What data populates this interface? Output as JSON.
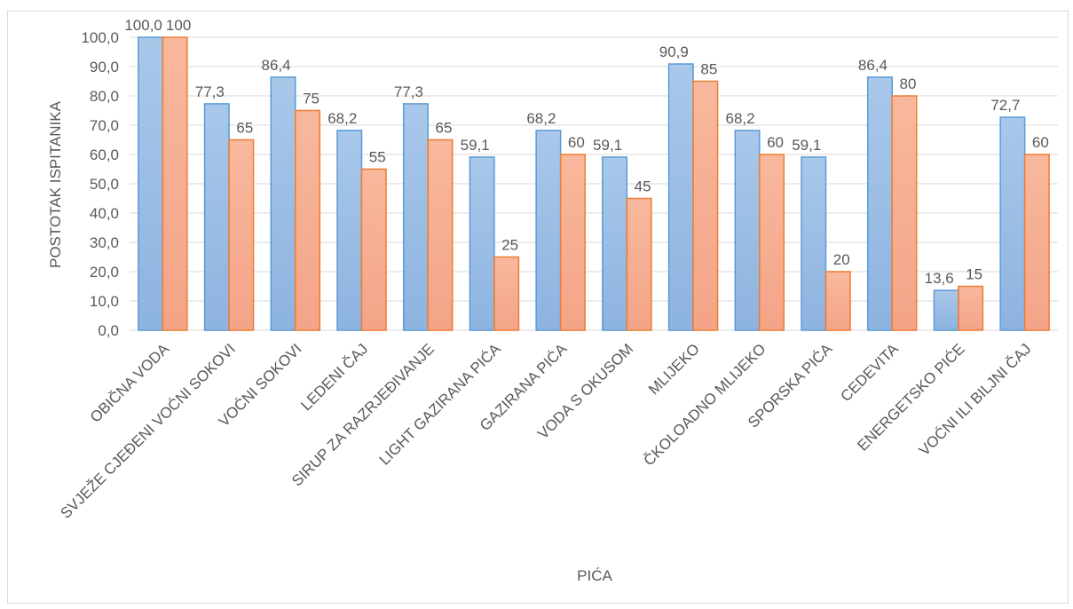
{
  "chart_data": {
    "type": "bar",
    "title": "",
    "xlabel": "PIĆA",
    "ylabel": "POSTOTAK ISPITANIKA",
    "ylim": [
      0,
      100
    ],
    "yticks": [
      "0,0",
      "10,0",
      "20,0",
      "30,0",
      "40,0",
      "50,0",
      "60,0",
      "70,0",
      "80,0",
      "90,0",
      "100,0"
    ],
    "grid": true,
    "legend": "none",
    "categories": [
      "OBIČNA VODA",
      "SVJEŽE CJEĐENI VOĆNI SOKOVI",
      "VOĆNI SOKOVI",
      "LEDENI ČAJ",
      "SIRUP ZA RAZRJEĐIVANJE",
      "LIGHT GAZIRANA PIĆA",
      "GAZIRANA PIĆA",
      "VODA S OKUSOM",
      "MLIJEKO",
      "ČKOLOADNO MLIJEKO",
      "SPORSKA PIĆA",
      "CEDEVITA",
      "ENERGETSKO PIĆE",
      "VOĆNI ILI BILJNI ČAJ"
    ],
    "series": [
      {
        "values": [
          100,
          77.3,
          86.4,
          68.2,
          77.3,
          59.1,
          68.2,
          59.1,
          90.9,
          68.2,
          59.1,
          86.4,
          13.6,
          72.7
        ],
        "labels": [
          "100,0",
          "77,3",
          "86,4",
          "68,2",
          "77,3",
          "59,1",
          "68,2",
          "59,1",
          "90,9",
          "68,2",
          "59,1",
          "86,4",
          "13,6",
          "72,7"
        ],
        "color": "#5b9bd5"
      },
      {
        "values": [
          100,
          65,
          75,
          55,
          65,
          25,
          60,
          45,
          85,
          60,
          20,
          80,
          15,
          60
        ],
        "labels": [
          "100",
          "65",
          "75",
          "55",
          "65",
          "25",
          "60",
          "45",
          "85",
          "60",
          "20",
          "80",
          "15",
          "60"
        ],
        "color": "#ed7d31"
      }
    ]
  }
}
